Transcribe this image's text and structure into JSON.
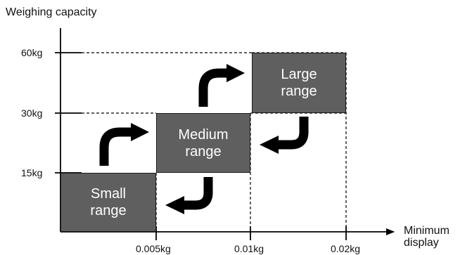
{
  "diagram": {
    "y_axis_title": "Weighing capacity",
    "x_axis_title_line1": "Minimum",
    "x_axis_title_line2": "display",
    "y_ticks": [
      "60kg",
      "30kg",
      "15kg"
    ],
    "x_ticks": [
      "0.005kg",
      "0.01kg",
      "0.02kg"
    ],
    "ranges": {
      "small": {
        "line1": "Small",
        "line2": "range",
        "capacity": "15kg",
        "min_display": "0.005kg"
      },
      "medium": {
        "line1": "Medium",
        "line2": "range",
        "capacity": "30kg",
        "min_display": "0.01kg"
      },
      "large": {
        "line1": "Large",
        "line2": "range",
        "capacity": "60kg",
        "min_display": "0.02kg"
      }
    },
    "colors": {
      "box_fill": "#5f5f5f",
      "box_text": "#ffffff",
      "arrow": "#000000",
      "axis": "#000000"
    },
    "arrows": [
      "curved-arrow-up-right",
      "curved-arrow-up-right",
      "curved-arrow-down-left",
      "curved-arrow-down-left"
    ]
  }
}
